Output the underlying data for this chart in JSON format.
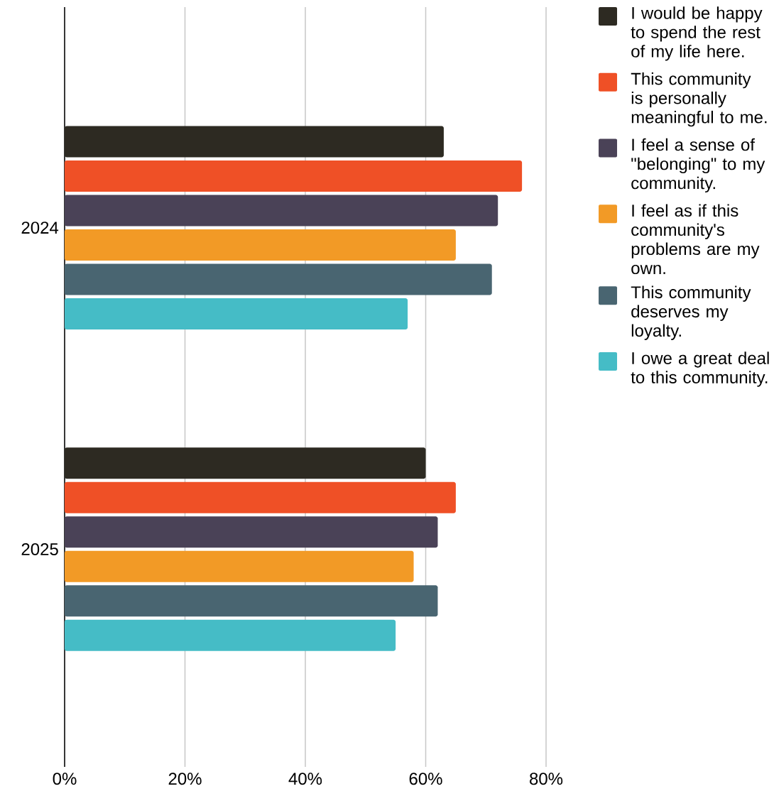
{
  "chart_data": {
    "type": "bar",
    "orientation": "horizontal",
    "categories": [
      "2024",
      "2025"
    ],
    "series": [
      {
        "name": "I would be happy to spend the rest of my life here.",
        "color": "#2d2a22",
        "values": [
          63,
          60
        ]
      },
      {
        "name": "This community is personally meaningful to me.",
        "color": "#ef5026",
        "values": [
          76,
          65
        ]
      },
      {
        "name": "I feel a sense of \"belonging\" to my community.",
        "color": "#4a4257",
        "values": [
          72,
          62
        ]
      },
      {
        "name": "I feel as if this community's problems are my own.",
        "color": "#f29a26",
        "values": [
          65,
          58
        ]
      },
      {
        "name": "This community deserves my loyalty.",
        "color": "#496571",
        "values": [
          71,
          62
        ]
      },
      {
        "name": "I owe a great deal to this community.",
        "color": "#45bcc6",
        "values": [
          57,
          55
        ]
      }
    ],
    "xlim": [
      0,
      80
    ],
    "xticks": [
      {
        "value": 0,
        "label": "0%"
      },
      {
        "value": 20,
        "label": "20%"
      },
      {
        "value": 40,
        "label": "40%"
      },
      {
        "value": 60,
        "label": "60%"
      },
      {
        "value": 80,
        "label": "80%"
      }
    ],
    "grid": "x",
    "legend": "top right"
  }
}
